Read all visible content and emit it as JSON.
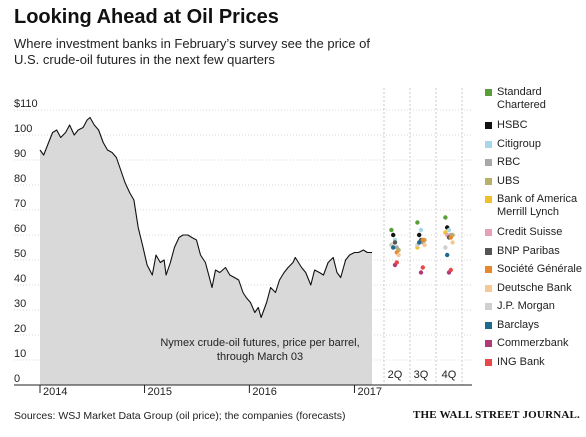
{
  "title": "Looking Ahead at Oil Prices",
  "subtitle": "Where investment banks in February’s survey see the price of U.S. crude-oil futures in the next few quarters",
  "source": "Sources: WSJ Market Data Group (oil price); the companies (forecasts)",
  "credit": "THE WALL STREET JOURNAL.",
  "chart_data": {
    "type": "area",
    "title": "Looking Ahead at Oil Prices",
    "ylim": [
      0,
      110
    ],
    "y_ticks": [
      0,
      10,
      20,
      30,
      40,
      50,
      60,
      70,
      80,
      90,
      100
    ],
    "y_top_label": "$110",
    "x_tick_labels": [
      "2014",
      "2015",
      "2016",
      "2017"
    ],
    "quarter_labels": [
      "2Q",
      "3Q",
      "4Q"
    ],
    "area_color": "#d9d9d9",
    "annotation_line1": "Nymex crude-oil futures, price per barrel,",
    "annotation_line2": "through March 03",
    "history": {
      "x": [
        "2014-01-02",
        "2014-01-15",
        "2014-02-01",
        "2014-02-15",
        "2014-03-01",
        "2014-03-15",
        "2014-04-01",
        "2014-04-15",
        "2014-05-01",
        "2014-05-15",
        "2014-06-01",
        "2014-06-15",
        "2014-06-25",
        "2014-07-10",
        "2014-07-25",
        "2014-08-10",
        "2014-08-25",
        "2014-09-10",
        "2014-09-25",
        "2014-10-10",
        "2014-10-25",
        "2014-11-10",
        "2014-11-25",
        "2014-12-10",
        "2014-12-25",
        "2015-01-10",
        "2015-01-28",
        "2015-02-10",
        "2015-02-25",
        "2015-03-10",
        "2015-03-17",
        "2015-04-01",
        "2015-04-15",
        "2015-05-01",
        "2015-05-15",
        "2015-06-01",
        "2015-06-15",
        "2015-07-01",
        "2015-07-15",
        "2015-08-01",
        "2015-08-15",
        "2015-08-24",
        "2015-09-05",
        "2015-09-20",
        "2015-10-10",
        "2015-10-25",
        "2015-11-10",
        "2015-11-25",
        "2015-12-10",
        "2015-12-21",
        "2016-01-05",
        "2016-01-20",
        "2016-02-01",
        "2016-02-11",
        "2016-03-01",
        "2016-03-15",
        "2016-04-01",
        "2016-04-15",
        "2016-05-01",
        "2016-05-15",
        "2016-06-01",
        "2016-06-09",
        "2016-07-01",
        "2016-07-15",
        "2016-08-02",
        "2016-08-15",
        "2016-09-01",
        "2016-09-15",
        "2016-10-01",
        "2016-10-19",
        "2016-11-01",
        "2016-11-14",
        "2016-12-01",
        "2016-12-15",
        "2017-01-01",
        "2017-01-15",
        "2017-02-01",
        "2017-02-15",
        "2017-03-03"
      ],
      "values": [
        94,
        92,
        97,
        101,
        102,
        99,
        101,
        104,
        100,
        102,
        103,
        106,
        107,
        104,
        102,
        97,
        94,
        93,
        91,
        86,
        81,
        77,
        74,
        63,
        56,
        48,
        44,
        52,
        49,
        50,
        44,
        49,
        55,
        59,
        60,
        60,
        59,
        58,
        52,
        49,
        43,
        39,
        46,
        45,
        47,
        44,
        43,
        42,
        37,
        35,
        33,
        29,
        31,
        27,
        33,
        39,
        37,
        42,
        45,
        47,
        49,
        51,
        47,
        45,
        40,
        46,
        45,
        44,
        49,
        51,
        45,
        43,
        50,
        52,
        53,
        53,
        54,
        53,
        53
      ]
    },
    "forecast_series": [
      {
        "name": "Standard Chartered",
        "color": "#5a9e3a",
        "values": [
          62,
          65,
          67
        ]
      },
      {
        "name": "HSBC",
        "color": "#111111",
        "values": [
          60,
          60,
          63
        ]
      },
      {
        "name": "Citigroup",
        "color": "#a8d8e8",
        "values": [
          58,
          62,
          62
        ]
      },
      {
        "name": "RBC",
        "color": "#a8a8a8",
        "values": [
          55,
          57,
          60
        ]
      },
      {
        "name": "UBS",
        "color": "#b8b06a",
        "values": [
          54,
          58,
          60
        ]
      },
      {
        "name": "Bank of America Merrill Lynch",
        "color": "#f0c02a",
        "values": [
          56,
          55,
          61
        ]
      },
      {
        "name": "Credit Suisse",
        "color": "#e8a0b8",
        "values": [
          55,
          57,
          60
        ]
      },
      {
        "name": "BNP Paribas",
        "color": "#555555",
        "values": [
          57,
          58,
          59
        ]
      },
      {
        "name": "Société Générale",
        "color": "#e8882a",
        "values": [
          53,
          58,
          59
        ]
      },
      {
        "name": "Deutsche Bank",
        "color": "#f5c89a",
        "values": [
          52,
          56,
          57
        ]
      },
      {
        "name": "J.P. Morgan",
        "color": "#cfcfcf",
        "values": [
          56,
          56,
          55
        ]
      },
      {
        "name": "Barclays",
        "color": "#1e6a8c",
        "values": [
          55,
          57,
          52
        ]
      },
      {
        "name": "Commerzbank",
        "color": "#b03a78",
        "values": [
          48,
          45,
          45
        ]
      },
      {
        "name": "ING Bank",
        "color": "#e84848",
        "values": [
          49,
          47,
          46
        ]
      }
    ]
  }
}
